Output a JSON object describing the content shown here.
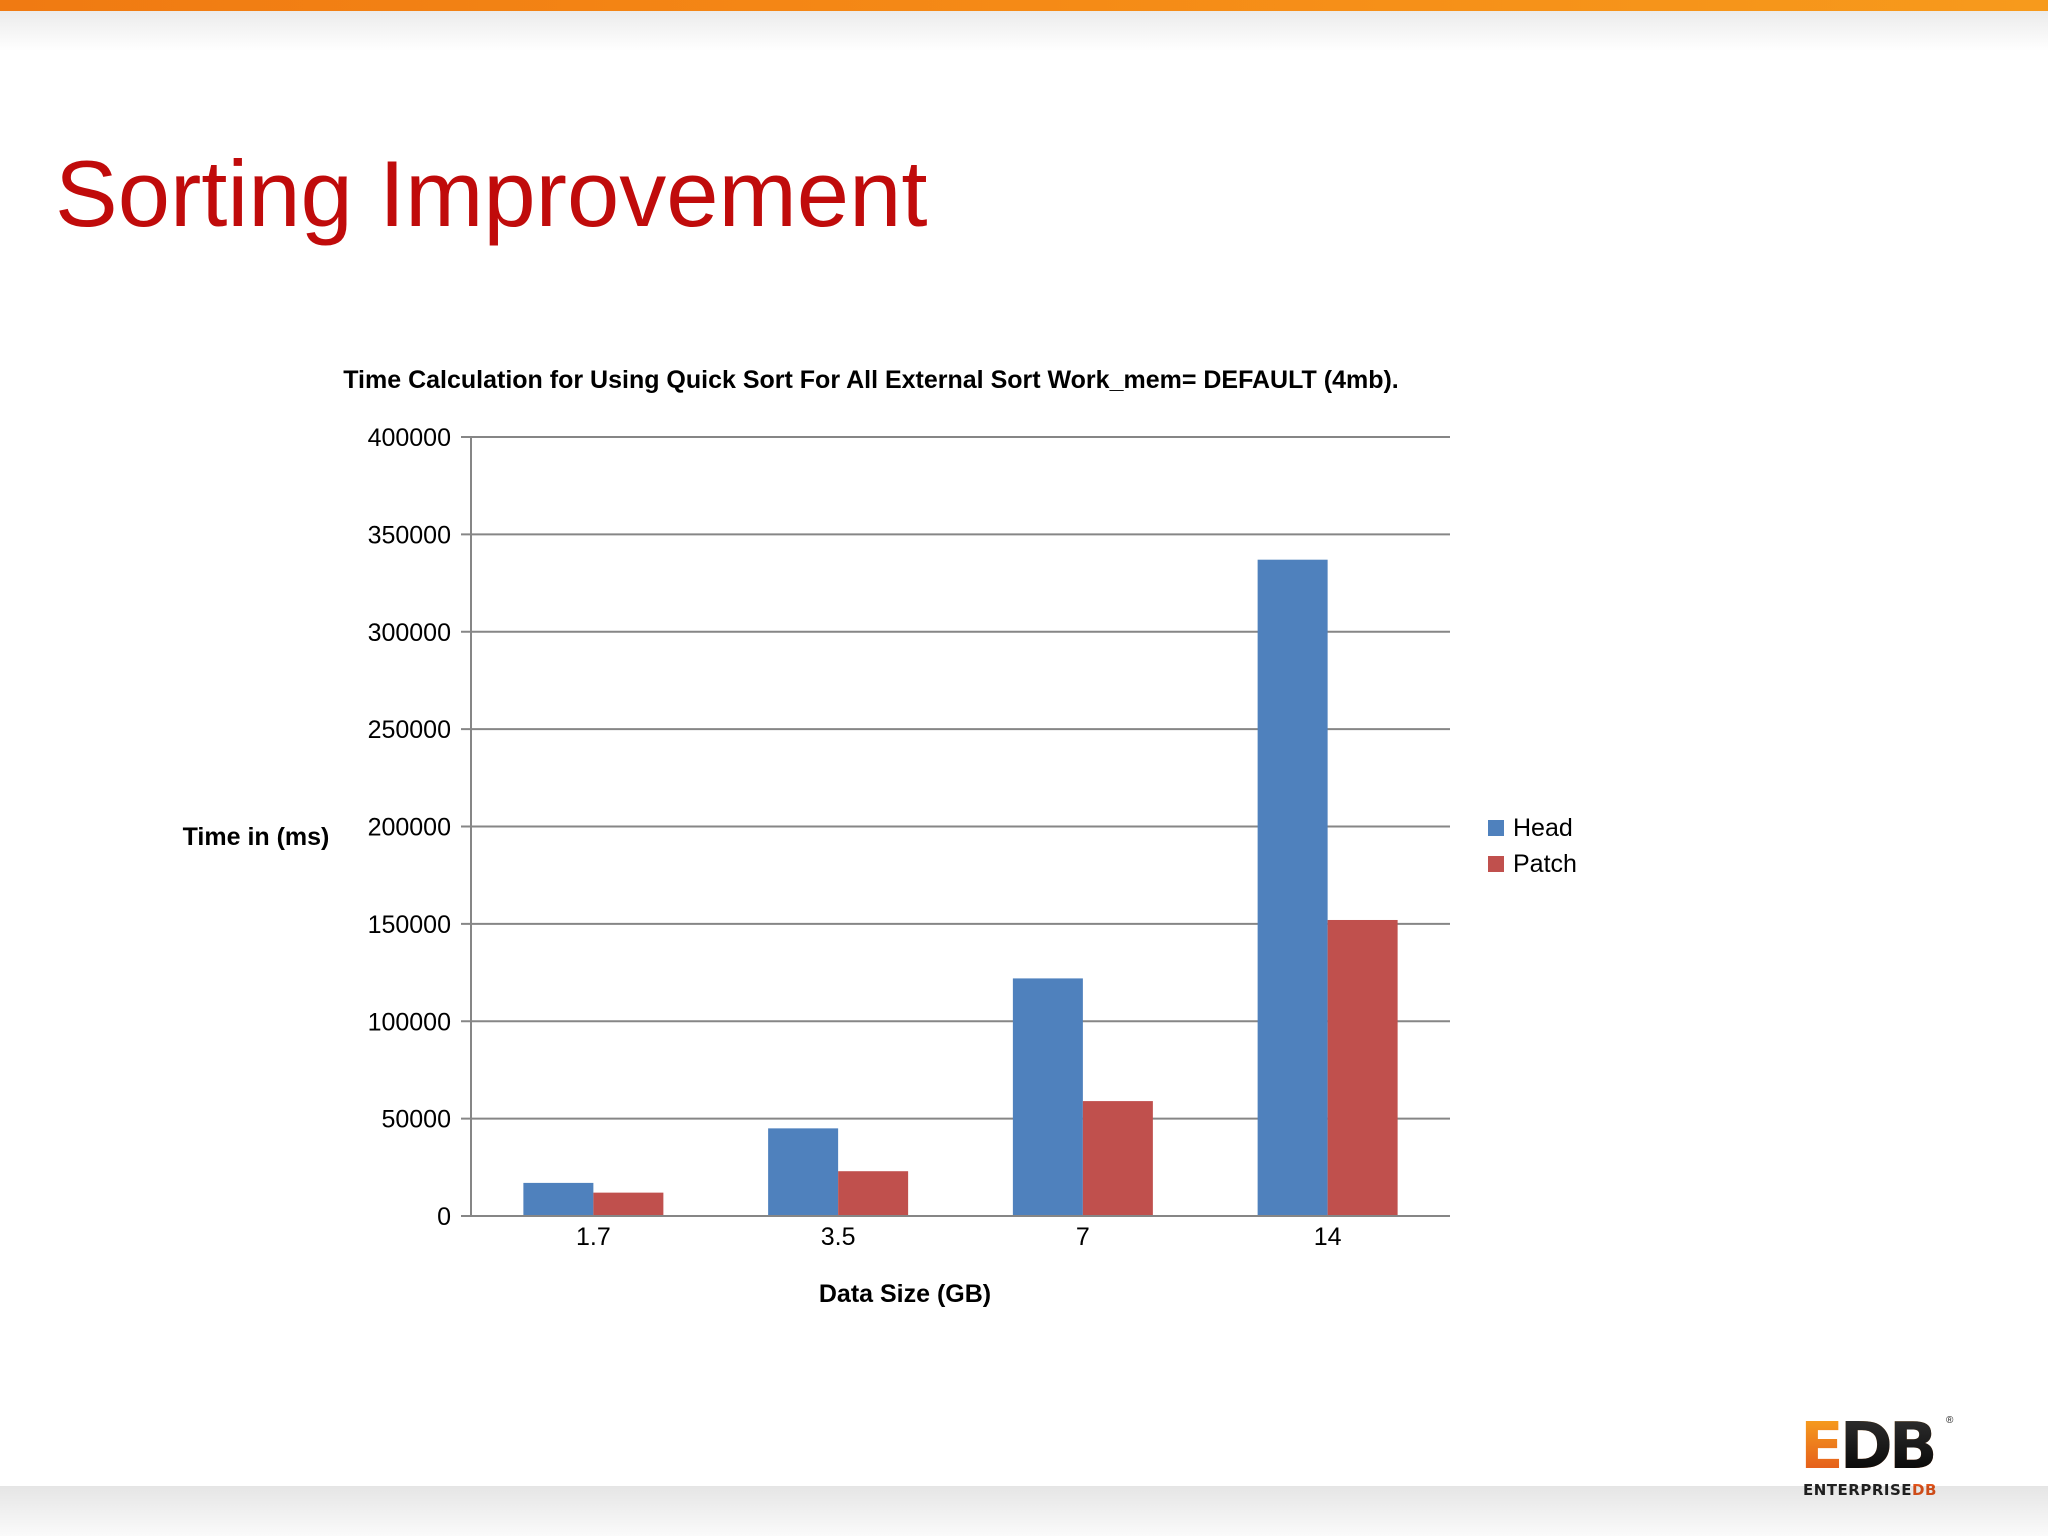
{
  "slide": {
    "title": "Sorting Improvement"
  },
  "logo": {
    "edb_1": "E",
    "edb_2": "DB",
    "tagline_1": "ENTERPRISE",
    "tagline_2": "DB",
    "registered": "®"
  },
  "colors": {
    "title": "#c00b0b",
    "top_bar": "#f58a16",
    "head": "#4f81bd",
    "patch": "#c0504d",
    "gridline": "#868686"
  },
  "chart_data": {
    "type": "bar",
    "title": "Time Calculation for Using Quick Sort For All External Sort Work_mem= DEFAULT (4mb).",
    "xlabel": "Data Size (GB)",
    "ylabel": "Time in (ms)",
    "categories": [
      "1.7",
      "3.5",
      "7",
      "14"
    ],
    "series": [
      {
        "name": "Head",
        "color": "#4f81bd",
        "values": [
          17000,
          45000,
          122000,
          337000
        ]
      },
      {
        "name": "Patch",
        "color": "#c0504d",
        "values": [
          12000,
          23000,
          59000,
          152000
        ]
      }
    ],
    "ylim": [
      0,
      400000
    ],
    "yticks": [
      "0",
      "50000",
      "100000",
      "150000",
      "200000",
      "250000",
      "300000",
      "350000",
      "400000"
    ],
    "grid": true,
    "legend_position": "right"
  }
}
